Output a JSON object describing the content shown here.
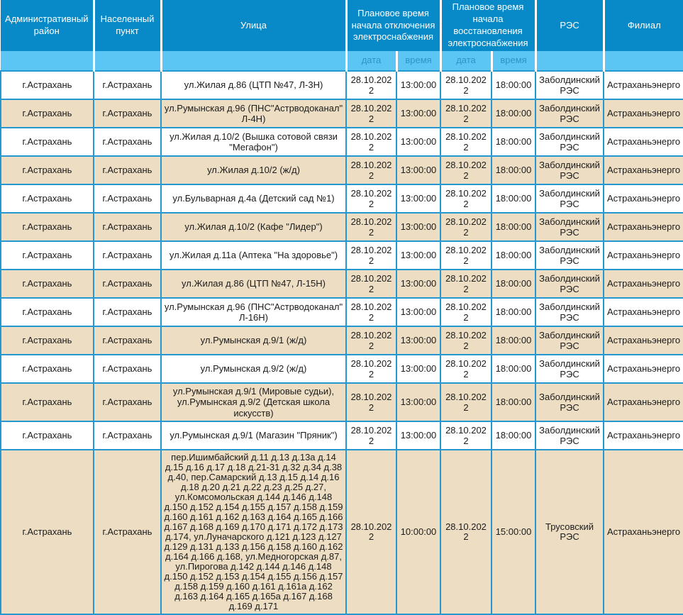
{
  "header": {
    "admin_district": "Административный район",
    "settlement": "Населенный пункт",
    "street": "Улица",
    "outage_start": "Плановое время начала отключения электроснабжения",
    "restore_start": "Плановое время начала восстановления электроснабжения",
    "res": "РЭС",
    "branch": "Филиал",
    "sub_date": "дата",
    "sub_time": "время"
  },
  "rows": [
    {
      "district": "г.Астрахань",
      "settlement": "г.Астрахань",
      "street": "ул.Жилая д.86 (ЦТП №47, Л-3Н)",
      "off_date": "28.10.2022",
      "off_time": "13:00:00",
      "on_date": "28.10.2022",
      "on_time": "18:00:00",
      "res": "Заболдинский РЭС",
      "branch": "Астраханьэнерго"
    },
    {
      "district": "г.Астрахань",
      "settlement": "г.Астрахань",
      "street": "ул.Румынская д.96 (ПНС\"Астрводоканал\" Л-4Н)",
      "off_date": "28.10.2022",
      "off_time": "13:00:00",
      "on_date": "28.10.2022",
      "on_time": "18:00:00",
      "res": "Заболдинский РЭС",
      "branch": "Астраханьэнерго"
    },
    {
      "district": "г.Астрахань",
      "settlement": "г.Астрахань",
      "street": "ул.Жилая д.10/2 (Вышка сотовой связи \"Мегафон\")",
      "off_date": "28.10.2022",
      "off_time": "13:00:00",
      "on_date": "28.10.2022",
      "on_time": "18:00:00",
      "res": "Заболдинский РЭС",
      "branch": "Астраханьэнерго"
    },
    {
      "district": "г.Астрахань",
      "settlement": "г.Астрахань",
      "street": "ул.Жилая д.10/2 (ж/д)",
      "off_date": "28.10.2022",
      "off_time": "13:00:00",
      "on_date": "28.10.2022",
      "on_time": "18:00:00",
      "res": "Заболдинский РЭС",
      "branch": "Астраханьэнерго"
    },
    {
      "district": "г.Астрахань",
      "settlement": "г.Астрахань",
      "street": "ул.Бульварная д.4а (Детский сад №1)",
      "off_date": "28.10.2022",
      "off_time": "13:00:00",
      "on_date": "28.10.2022",
      "on_time": "18:00:00",
      "res": "Заболдинский РЭС",
      "branch": "Астраханьэнерго"
    },
    {
      "district": "г.Астрахань",
      "settlement": "г.Астрахань",
      "street": "ул.Жилая д.10/2 (Кафе \"Лидер\")",
      "off_date": "28.10.2022",
      "off_time": "13:00:00",
      "on_date": "28.10.2022",
      "on_time": "18:00:00",
      "res": "Заболдинский РЭС",
      "branch": "Астраханьэнерго"
    },
    {
      "district": "г.Астрахань",
      "settlement": "г.Астрахань",
      "street": "ул.Жилая д.11а (Аптека \"На здоровье\")",
      "off_date": "28.10.2022",
      "off_time": "13:00:00",
      "on_date": "28.10.2022",
      "on_time": "18:00:00",
      "res": "Заболдинский РЭС",
      "branch": "Астраханьэнерго"
    },
    {
      "district": "г.Астрахань",
      "settlement": "г.Астрахань",
      "street": "ул.Жилая д.86 (ЦТП №47, Л-15Н)",
      "off_date": "28.10.2022",
      "off_time": "13:00:00",
      "on_date": "28.10.2022",
      "on_time": "18:00:00",
      "res": "Заболдинский РЭС",
      "branch": "Астраханьэнерго"
    },
    {
      "district": "г.Астрахань",
      "settlement": "г.Астрахань",
      "street": "ул.Румынская д.96 (ПНС\"Астрводоканал\" Л-16Н)",
      "off_date": "28.10.2022",
      "off_time": "13:00:00",
      "on_date": "28.10.2022",
      "on_time": "18:00:00",
      "res": "Заболдинский РЭС",
      "branch": "Астраханьэнерго"
    },
    {
      "district": "г.Астрахань",
      "settlement": "г.Астрахань",
      "street": "ул.Румынская д.9/1 (ж/д)",
      "off_date": "28.10.2022",
      "off_time": "13:00:00",
      "on_date": "28.10.2022",
      "on_time": "18:00:00",
      "res": "Заболдинский РЭС",
      "branch": "Астраханьэнерго"
    },
    {
      "district": "г.Астрахань",
      "settlement": "г.Астрахань",
      "street": "ул.Румынская д.9/2 (ж/д)",
      "off_date": "28.10.2022",
      "off_time": "13:00:00",
      "on_date": "28.10.2022",
      "on_time": "18:00:00",
      "res": "Заболдинский РЭС",
      "branch": "Астраханьэнерго"
    },
    {
      "district": "г.Астрахань",
      "settlement": "г.Астрахань",
      "street": "ул.Румынская д.9/1 (Мировые судьи), ул.Румынская д.9/2 (Детская школа искусств)",
      "off_date": "28.10.2022",
      "off_time": "13:00:00",
      "on_date": "28.10.2022",
      "on_time": "18:00:00",
      "res": "Заболдинский РЭС",
      "branch": "Астраханьэнерго"
    },
    {
      "district": "г.Астрахань",
      "settlement": "г.Астрахань",
      "street": "ул.Румынская д.9/1 (Магазин \"Пряник\")",
      "off_date": "28.10.2022",
      "off_time": "13:00:00",
      "on_date": "28.10.2022",
      "on_time": "18:00:00",
      "res": "Заболдинский РЭС",
      "branch": "Астраханьэнерго"
    },
    {
      "district": "г.Астрахань",
      "settlement": "г.Астрахань",
      "street": "пер.Ишимбайский д.11 д.13 д.13а д.14 д.15 д.16 д.17 д.18 д.21-31 д.32 д.34 д.38 д.40, пер.Самарский д.13 д.15 д.14 д.16 д.18 д.20 д.21 д.22 д.23 д.25 д.27, ул.Комсомольская д.144 д.146 д.148 д.150 д.152 д.154 д.155 д.157 д.158 д.159 д.160 д.161 д.162 д.163 д.164 д.165 д.166 д.167 д.168 д.169 д.170 д.171 д.172 д.173 д.174, ул.Луначарского д.121 д.123 д.127 д.129 д.131 д.133 д.156 д.158 д.160 д.162 д.164 д.166 д.168, ул.Медногорская д.87, ул.Пирогова д.142 д.144 д.146 д.148 д.150 д.152 д.153 д.154 д.155 д.156 д.157 д.158 д.159 д.160 д.161 д.161а д.162 д.163 д.164 д.165 д.165а д.167 д.168 д.169 д.171",
      "off_date": "28.10.2022",
      "off_time": "10:00:00",
      "on_date": "28.10.2022",
      "on_time": "15:00:00",
      "res": "Трусовский РЭС",
      "branch": "Астраханьэнерго"
    }
  ],
  "colors": {
    "header_bg": "#0889c8",
    "subheader_bg": "#5bc6f3",
    "subheader_text": "#2e93c9",
    "border": "#2498d0",
    "row_bg": "#ffffff",
    "row_alt_bg": "#ecddc3",
    "text": "#1c1c1c"
  }
}
